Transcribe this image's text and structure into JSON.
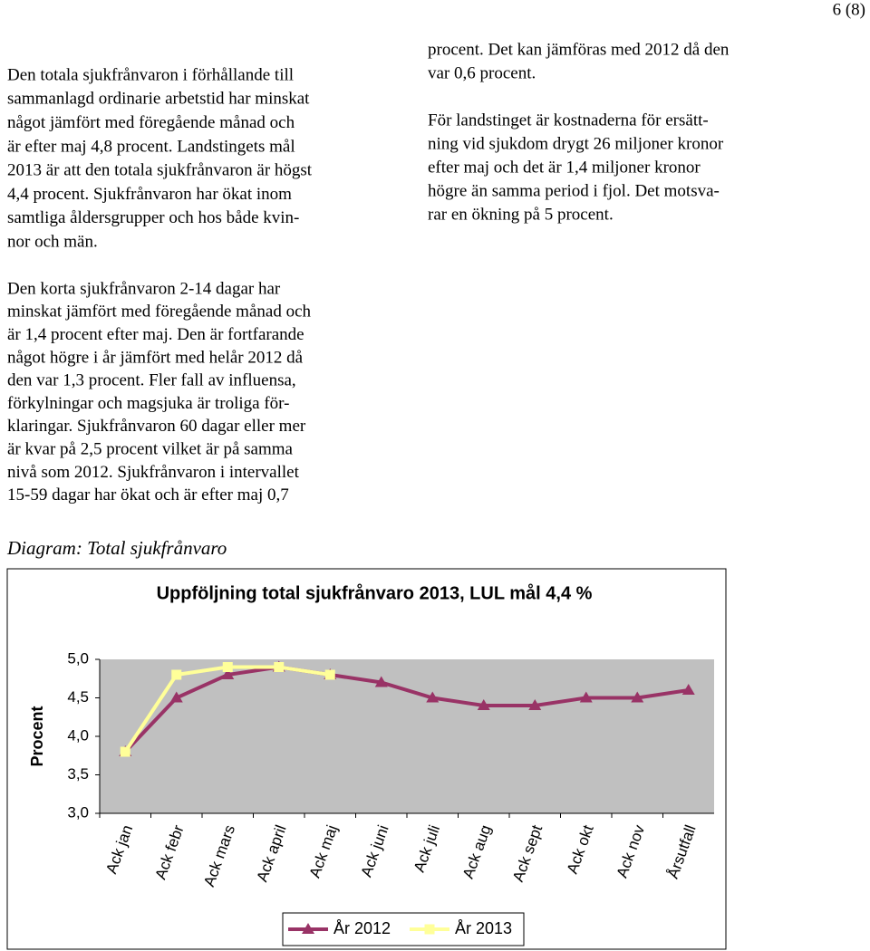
{
  "page_number": "6 (8)",
  "left_column": [
    [
      "Den totala sjukfrånvaron i förhållande till",
      "sammanlagd ordinarie arbetstid har minskat",
      "något jämfört med föregående månad och",
      "är efter maj 4,8 procent. Landstingets mål",
      "2013 är att den totala sjukfrånvaron är högst",
      "4,4 procent. Sjukfrånvaron har ökat inom",
      "samtliga åldersgrupper och hos både kvin-",
      "nor och män."
    ],
    [
      "Den korta sjukfrånvaron 2-14 dagar har",
      "minskat jämfört med föregående månad och",
      "är 1,4 procent efter maj. Den är fortfarande",
      "något högre i år jämfört med helår 2012 då",
      "den var 1,3 procent. Fler fall av influensa,",
      "förkylningar och magsjuka är troliga för-",
      "klaringar. Sjukfrånvaron 60 dagar eller mer",
      "är kvar på 2,5 procent vilket är på samma",
      "nivå som 2012. Sjukfrånvaron i intervallet",
      "15-59 dagar har ökat och är efter maj 0,7"
    ]
  ],
  "right_column": [
    [
      "procent. Det kan jämföras med 2012 då den",
      "var 0,6 procent."
    ],
    [
      "För landstinget är kostnaderna för ersätt-",
      "ning vid sjukdom drygt 26 miljoner kronor",
      "efter maj och det är 1,4 miljoner kronor",
      "högre än samma period i fjol. Det motsva-",
      "rar en ökning på 5 procent."
    ]
  ],
  "diagram_heading": "Diagram: Total sjukfrånvaro",
  "chart_data": {
    "type": "line",
    "title": "Uppföljning total sjukfrånvaro 2013, LUL mål 4,4 %",
    "y_label": "Procent",
    "categories": [
      "Ack jan",
      "Ack febr",
      "Ack mars",
      "Ack april",
      "Ack maj",
      "Ack juni",
      "Ack juli",
      "Ack aug",
      "Ack sept",
      "Ack okt",
      "Ack nov",
      "Årsutfall"
    ],
    "series": [
      {
        "name": "År 2012",
        "color": "#993366",
        "marker": "triangle",
        "values": [
          3.8,
          4.5,
          4.8,
          4.9,
          4.8,
          4.7,
          4.5,
          4.4,
          4.4,
          4.5,
          4.5,
          4.6
        ]
      },
      {
        "name": "År 2013",
        "color": "#ffff99",
        "marker": "square",
        "values": [
          3.8,
          4.8,
          4.9,
          4.9,
          4.8,
          null,
          null,
          null,
          null,
          null,
          null,
          null
        ]
      }
    ],
    "ylim": [
      3,
      5
    ],
    "yticks": [
      {
        "value": 3,
        "label": "3,0"
      },
      {
        "value": 3.5,
        "label": "3,5"
      },
      {
        "value": 4,
        "label": "4,0"
      },
      {
        "value": 4.5,
        "label": "4,5"
      },
      {
        "value": 5,
        "label": "5,0"
      }
    ],
    "plot_background": "#c0c0c0",
    "legend": "bottom"
  }
}
